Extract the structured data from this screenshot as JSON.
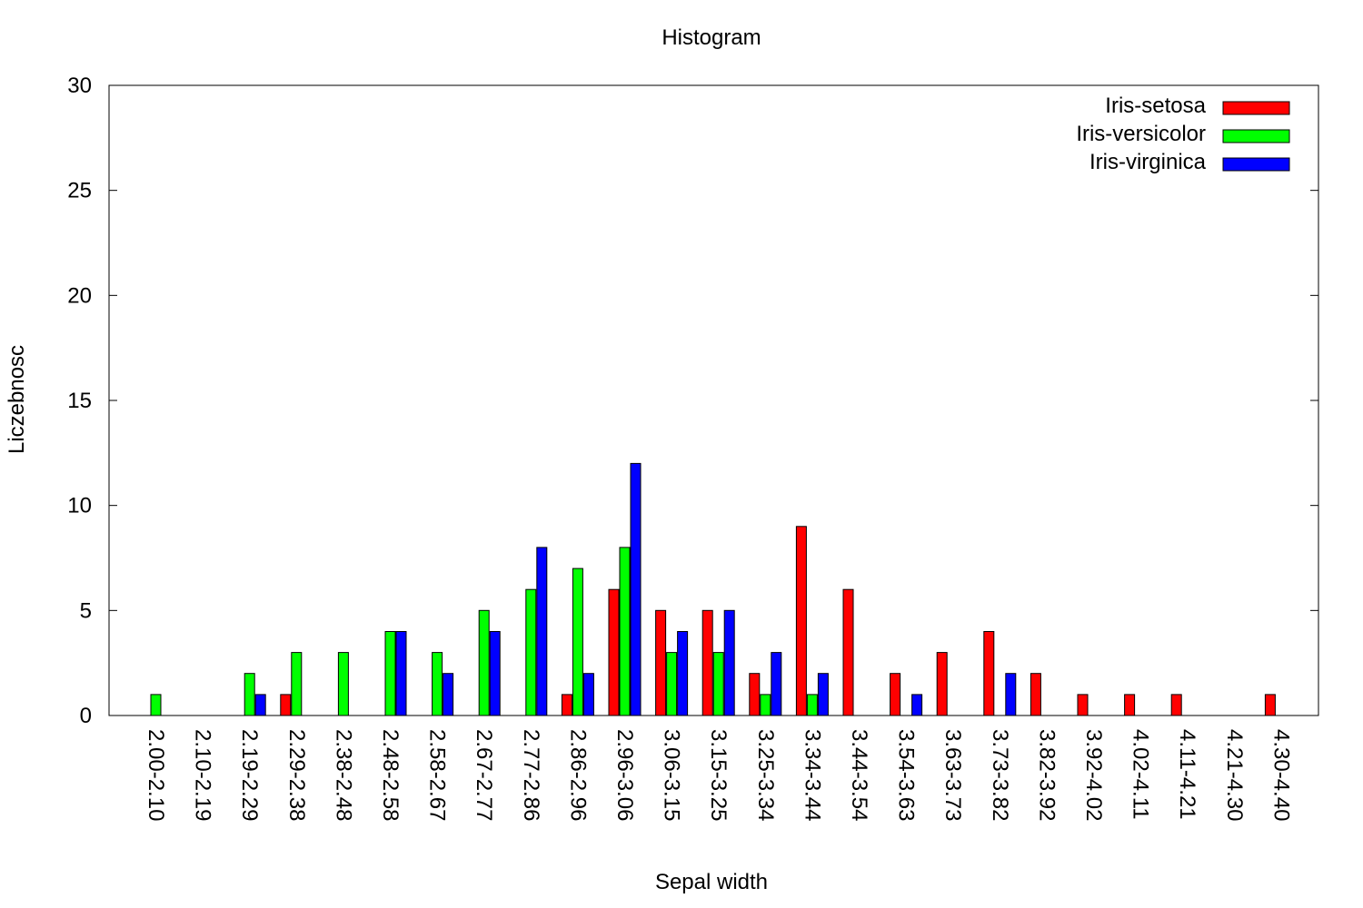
{
  "chart_data": {
    "type": "bar",
    "title": "Histogram",
    "xlabel": "Sepal width",
    "ylabel": "Liczebnosc",
    "ylim": [
      0,
      30
    ],
    "yticks": [
      0,
      5,
      10,
      15,
      20,
      25,
      30
    ],
    "grid": false,
    "legend_position": "top-right",
    "categories": [
      "2.00-2.10",
      "2.10-2.19",
      "2.19-2.29",
      "2.29-2.38",
      "2.38-2.48",
      "2.48-2.58",
      "2.58-2.67",
      "2.67-2.77",
      "2.77-2.86",
      "2.86-2.96",
      "2.96-3.06",
      "3.06-3.15",
      "3.15-3.25",
      "3.25-3.34",
      "3.34-3.44",
      "3.44-3.54",
      "3.54-3.63",
      "3.63-3.73",
      "3.73-3.82",
      "3.82-3.92",
      "3.92-4.02",
      "4.02-4.11",
      "4.11-4.21",
      "4.21-4.30",
      "4.30-4.40"
    ],
    "series": [
      {
        "name": "Iris-setosa",
        "color": "#ff0000",
        "values": [
          0,
          0,
          0,
          1,
          0,
          0,
          0,
          0,
          0,
          1,
          6,
          5,
          5,
          2,
          9,
          6,
          2,
          3,
          4,
          2,
          1,
          1,
          1,
          0,
          1
        ]
      },
      {
        "name": "Iris-versicolor",
        "color": "#00ff00",
        "values": [
          1,
          0,
          2,
          3,
          3,
          4,
          3,
          5,
          6,
          7,
          8,
          3,
          3,
          1,
          1,
          0,
          0,
          0,
          0,
          0,
          0,
          0,
          0,
          0,
          0
        ]
      },
      {
        "name": "Iris-virginica",
        "color": "#0000ff",
        "values": [
          0,
          0,
          1,
          0,
          0,
          4,
          2,
          4,
          8,
          2,
          12,
          4,
          5,
          3,
          2,
          0,
          1,
          0,
          2,
          0,
          0,
          0,
          0,
          0,
          0
        ]
      }
    ]
  }
}
